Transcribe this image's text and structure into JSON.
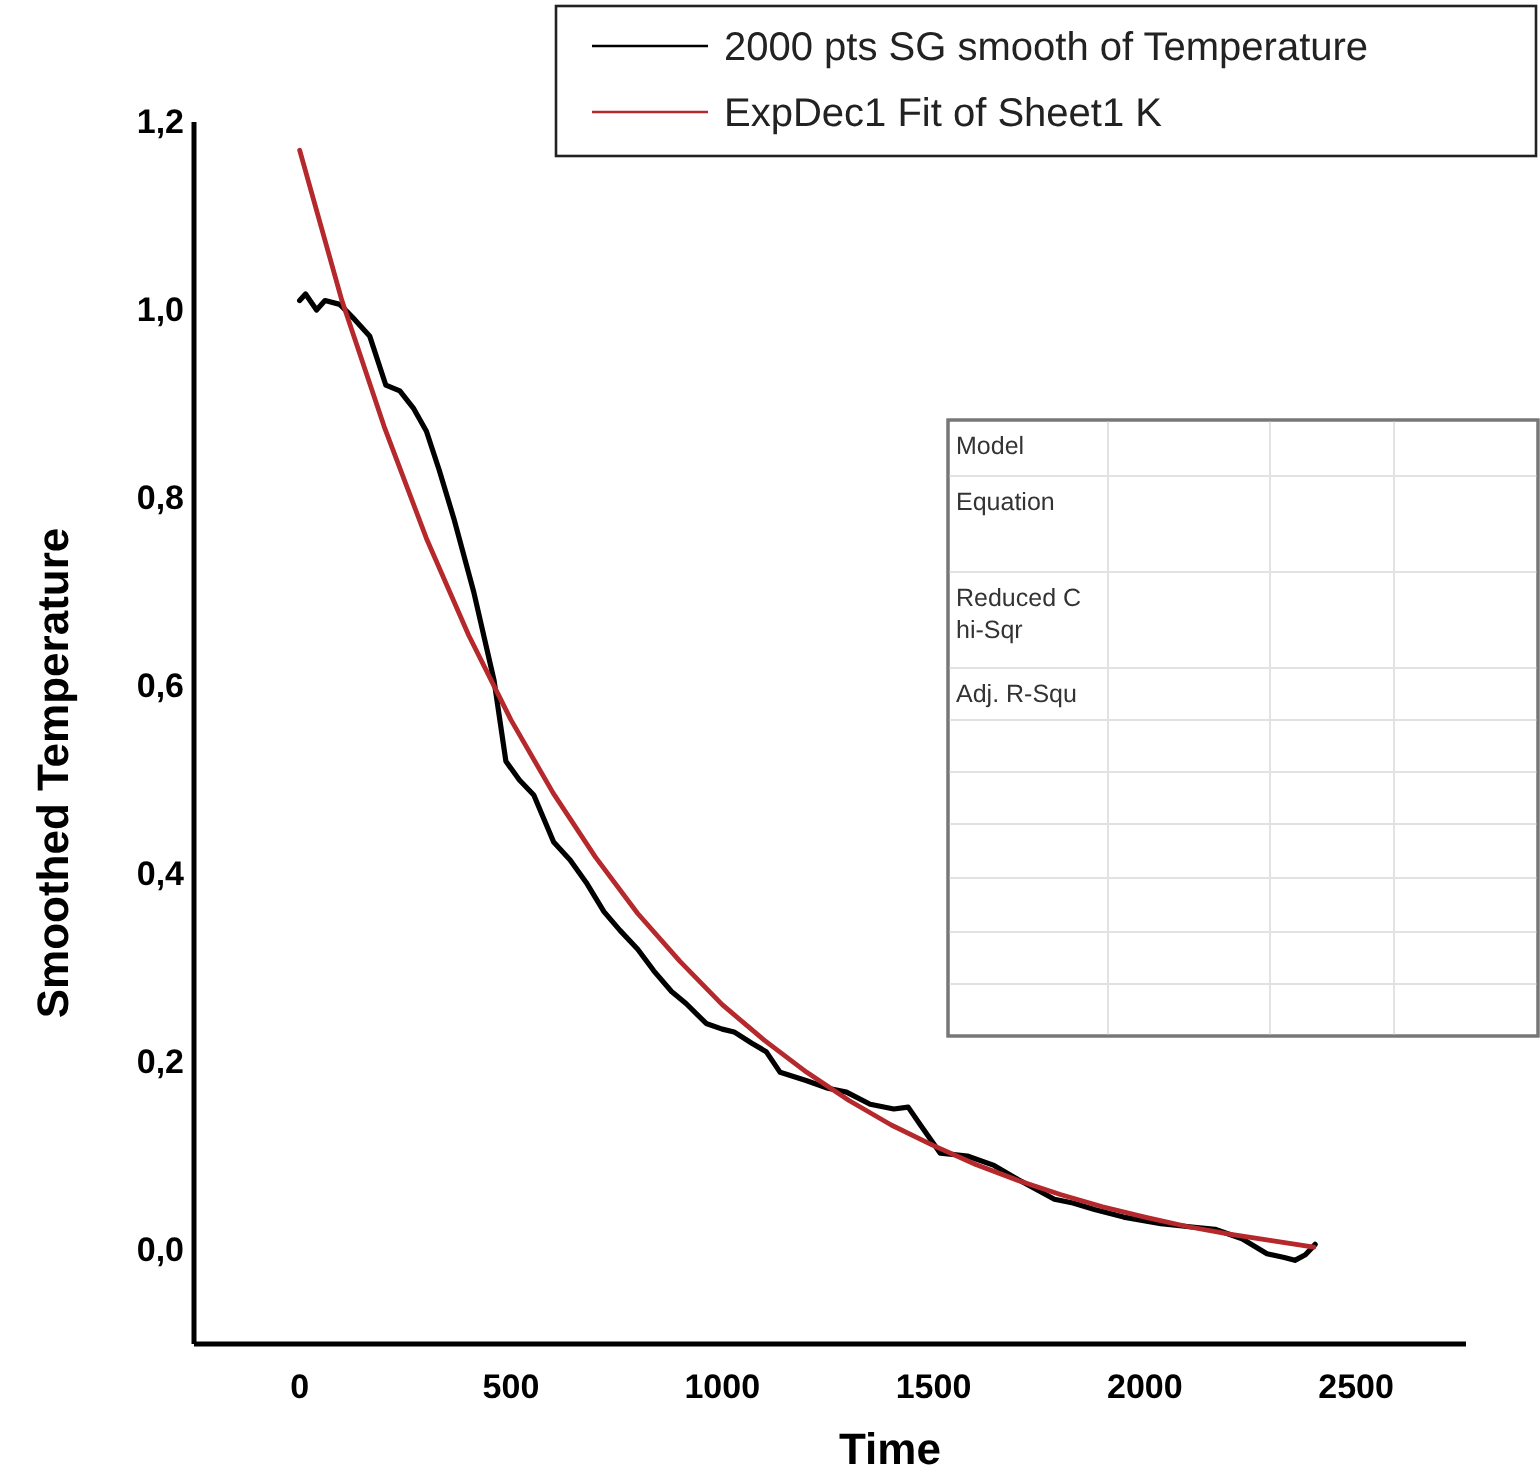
{
  "chart_data": {
    "type": "line",
    "xlabel": "Time",
    "ylabel": "Smoothed Temperature",
    "xlim": [
      -250,
      2760
    ],
    "ylim": [
      -0.1,
      1.2
    ],
    "xticks": [
      0,
      500,
      1000,
      1500,
      2000,
      2500
    ],
    "yticks": [
      {
        "value": 0,
        "label": "0,0"
      },
      {
        "value": 0.2,
        "label": "0,2"
      },
      {
        "value": 0.4,
        "label": "0,4"
      },
      {
        "value": 0.6,
        "label": "0,6"
      },
      {
        "value": 0.8,
        "label": "0,8"
      },
      {
        "value": 1.0,
        "label": "1,0"
      },
      {
        "value": 1.2,
        "label": "1,2"
      }
    ],
    "grid": false,
    "legend": "top right",
    "series": [
      {
        "name": "2000 pts SG smooth of Temperature",
        "color": "#000000",
        "x": [
          0,
          14,
          40,
          60,
          95,
          130,
          166,
          204,
          237,
          270,
          300,
          330,
          365,
          412,
          460,
          488,
          520,
          554,
          601,
          640,
          678,
          720,
          758,
          800,
          838,
          880,
          915,
          962,
          1000,
          1028,
          1070,
          1104,
          1137,
          1200,
          1250,
          1294,
          1350,
          1406,
          1440,
          1469,
          1516,
          1580,
          1643,
          1700,
          1786,
          1830,
          1881,
          1950,
          2038,
          2100,
          2166,
          2230,
          2289,
          2330,
          2355,
          2380,
          2403
        ],
        "values": [
          1.01,
          1.017,
          1.0,
          1.01,
          1.006,
          0.99,
          0.972,
          0.92,
          0.914,
          0.895,
          0.871,
          0.83,
          0.778,
          0.7,
          0.606,
          0.52,
          0.5,
          0.484,
          0.434,
          0.415,
          0.391,
          0.36,
          0.34,
          0.32,
          0.297,
          0.275,
          0.262,
          0.241,
          0.235,
          0.232,
          0.22,
          0.211,
          0.189,
          0.18,
          0.172,
          0.168,
          0.155,
          0.15,
          0.152,
          0.133,
          0.103,
          0.1,
          0.09,
          0.075,
          0.054,
          0.05,
          0.043,
          0.035,
          0.028,
          0.025,
          0.022,
          0.012,
          -0.004,
          -0.008,
          -0.011,
          -0.005,
          0.006
        ]
      },
      {
        "name": "ExpDec1 Fit of Sheet1 K",
        "color": "#b5282c",
        "x": [
          0,
          100,
          200,
          300,
          400,
          500,
          600,
          700,
          800,
          900,
          1000,
          1100,
          1200,
          1300,
          1400,
          1500,
          1600,
          1700,
          1800,
          1900,
          2000,
          2100,
          2200,
          2300,
          2400
        ],
        "values": [
          1.17,
          1.01,
          0.876,
          0.757,
          0.654,
          0.564,
          0.486,
          0.418,
          0.358,
          0.307,
          0.261,
          0.223,
          0.189,
          0.159,
          0.133,
          0.111,
          0.091,
          0.074,
          0.059,
          0.046,
          0.035,
          0.025,
          0.017,
          0.01,
          0.003
        ]
      }
    ],
    "annotations": [
      "Model",
      "Equation",
      "Reduced C\nhi-Sqr",
      "Adj. R-Squ"
    ]
  }
}
